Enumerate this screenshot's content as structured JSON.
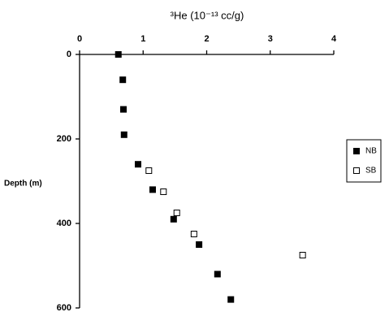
{
  "chart_data": {
    "type": "scatter",
    "x_label": "³He (10⁻¹³ cc/g)",
    "y_label": "Depth (m)",
    "xlim": [
      0,
      4
    ],
    "xticks": [
      0,
      1,
      2,
      3,
      4
    ],
    "ylim": [
      0,
      600
    ],
    "yticks": [
      0,
      200,
      400,
      600
    ],
    "y_inverted": true,
    "x_axis_position": "top",
    "legend": "right",
    "series": [
      {
        "name": "NB",
        "color": "#000000",
        "marker": "filled",
        "x": [
          0.61,
          0.68,
          0.69,
          0.7,
          0.92,
          1.15,
          1.48,
          1.88,
          2.17,
          2.38
        ],
        "values": [
          0,
          60,
          130,
          190,
          260,
          320,
          390,
          450,
          520,
          580
        ]
      },
      {
        "name": "SB",
        "color": "#000000",
        "marker": "open",
        "x": [
          1.09,
          1.32,
          1.53,
          1.8,
          3.51
        ],
        "values": [
          275,
          325,
          375,
          425,
          475
        ]
      }
    ]
  }
}
